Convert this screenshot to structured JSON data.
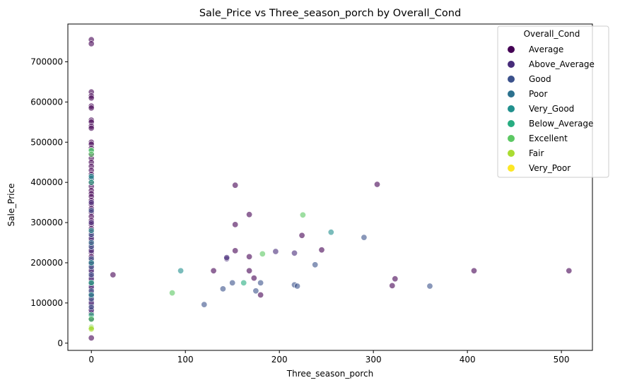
{
  "chart_data": {
    "type": "scatter",
    "title": "Sale_Price vs Three_season_porch by Overall_Cond",
    "xlabel": "Three_season_porch",
    "ylabel": "Sale_Price",
    "xlim": [
      -25,
      533
    ],
    "ylim": [
      -18000,
      794000
    ],
    "xticks": [
      0,
      100,
      200,
      300,
      400,
      500
    ],
    "yticks": [
      0,
      100000,
      200000,
      300000,
      400000,
      500000,
      600000,
      700000
    ],
    "legend": {
      "title": "Overall_Cond",
      "position": "top-right",
      "entries": [
        {
          "name": "Average",
          "color": "#440154"
        },
        {
          "name": "Above_Average",
          "color": "#472c7a"
        },
        {
          "name": "Good",
          "color": "#3b518b"
        },
        {
          "name": "Poor",
          "color": "#2c718e"
        },
        {
          "name": "Very_Good",
          "color": "#21908d"
        },
        {
          "name": "Below_Average",
          "color": "#27ad81"
        },
        {
          "name": "Excellent",
          "color": "#5cc863"
        },
        {
          "name": "Fair",
          "color": "#aadc32"
        },
        {
          "name": "Very_Poor",
          "color": "#fde725"
        }
      ]
    },
    "series": [
      {
        "name": "Average",
        "color": "#440154",
        "points": [
          [
            0,
            755000
          ],
          [
            0,
            745000
          ],
          [
            0,
            625000
          ],
          [
            0,
            615000
          ],
          [
            0,
            610000
          ],
          [
            0,
            590000
          ],
          [
            0,
            585000
          ],
          [
            0,
            555000
          ],
          [
            0,
            550000
          ],
          [
            0,
            540000
          ],
          [
            0,
            535000
          ],
          [
            0,
            500000
          ],
          [
            0,
            495000
          ],
          [
            0,
            485000
          ],
          [
            0,
            470000
          ],
          [
            0,
            460000
          ],
          [
            0,
            450000
          ],
          [
            0,
            440000
          ],
          [
            0,
            430000
          ],
          [
            0,
            420000
          ],
          [
            0,
            410000
          ],
          [
            0,
            400000
          ],
          [
            0,
            390000
          ],
          [
            0,
            380000
          ],
          [
            0,
            372000
          ],
          [
            0,
            365000
          ],
          [
            0,
            355000
          ],
          [
            0,
            345000
          ],
          [
            0,
            335000
          ],
          [
            0,
            325000
          ],
          [
            0,
            315000
          ],
          [
            0,
            305000
          ],
          [
            0,
            295000
          ],
          [
            0,
            285000
          ],
          [
            0,
            275000
          ],
          [
            0,
            265000
          ],
          [
            0,
            255000
          ],
          [
            0,
            245000
          ],
          [
            0,
            235000
          ],
          [
            0,
            225000
          ],
          [
            0,
            215000
          ],
          [
            0,
            205000
          ],
          [
            0,
            195000
          ],
          [
            0,
            185000
          ],
          [
            0,
            175000
          ],
          [
            0,
            165000
          ],
          [
            0,
            155000
          ],
          [
            0,
            145000
          ],
          [
            0,
            135000
          ],
          [
            0,
            125000
          ],
          [
            0,
            115000
          ],
          [
            0,
            105000
          ],
          [
            0,
            95000
          ],
          [
            0,
            85000
          ],
          [
            0,
            75000
          ],
          [
            0,
            60000
          ],
          [
            0,
            13000
          ],
          [
            23,
            170000
          ],
          [
            130,
            180000
          ],
          [
            153,
            393000
          ],
          [
            153,
            295000
          ],
          [
            153,
            230000
          ],
          [
            168,
            320000
          ],
          [
            168,
            215000
          ],
          [
            168,
            180000
          ],
          [
            173,
            162000
          ],
          [
            180,
            120000
          ],
          [
            224,
            268000
          ],
          [
            245,
            232000
          ],
          [
            304,
            395000
          ],
          [
            320,
            143000
          ],
          [
            323,
            160000
          ],
          [
            407,
            180000
          ],
          [
            508,
            180000
          ]
        ]
      },
      {
        "name": "Above_Average",
        "color": "#472c7a",
        "points": [
          [
            0,
            350000
          ],
          [
            0,
            300000
          ],
          [
            0,
            260000
          ],
          [
            0,
            230000
          ],
          [
            0,
            200000
          ],
          [
            0,
            180000
          ],
          [
            0,
            160000
          ],
          [
            0,
            140000
          ],
          [
            0,
            120000
          ],
          [
            0,
            100000
          ],
          [
            0,
            82000
          ],
          [
            144,
            210000
          ],
          [
            144,
            213000
          ],
          [
            196,
            228000
          ],
          [
            216,
            224000
          ]
        ]
      },
      {
        "name": "Good",
        "color": "#3b518b",
        "points": [
          [
            0,
            330000
          ],
          [
            0,
            270000
          ],
          [
            0,
            240000
          ],
          [
            0,
            210000
          ],
          [
            0,
            190000
          ],
          [
            0,
            170000
          ],
          [
            0,
            150000
          ],
          [
            0,
            130000
          ],
          [
            0,
            110000
          ],
          [
            0,
            90000
          ],
          [
            120,
            96000
          ],
          [
            140,
            135000
          ],
          [
            150,
            150000
          ],
          [
            175,
            130000
          ],
          [
            180,
            150000
          ],
          [
            216,
            145000
          ],
          [
            219,
            142000
          ],
          [
            238,
            195000
          ],
          [
            290,
            263000
          ],
          [
            360,
            142000
          ]
        ]
      },
      {
        "name": "Poor",
        "color": "#2c718e",
        "points": [
          [
            0,
            410000
          ],
          [
            0,
            250000
          ],
          [
            0,
            60000
          ]
        ]
      },
      {
        "name": "Very_Good",
        "color": "#21908d",
        "points": [
          [
            0,
            415000
          ],
          [
            0,
            280000
          ],
          [
            0,
            200000
          ],
          [
            0,
            120000
          ],
          [
            95,
            180000
          ],
          [
            255,
            276000
          ]
        ]
      },
      {
        "name": "Below_Average",
        "color": "#27ad81",
        "points": [
          [
            0,
            478000
          ],
          [
            0,
            400000
          ],
          [
            0,
            150000
          ],
          [
            0,
            70000
          ],
          [
            162,
            150000
          ]
        ]
      },
      {
        "name": "Excellent",
        "color": "#5cc863",
        "points": [
          [
            0,
            480000
          ],
          [
            0,
            470000
          ],
          [
            0,
            60000
          ],
          [
            0,
            40000
          ],
          [
            86,
            125000
          ],
          [
            182,
            222000
          ],
          [
            225,
            319000
          ]
        ]
      },
      {
        "name": "Fair",
        "color": "#aadc32",
        "points": [
          [
            0,
            38000
          ],
          [
            0,
            35000
          ]
        ]
      },
      {
        "name": "Very_Poor",
        "color": "#fde725",
        "points": []
      }
    ]
  }
}
